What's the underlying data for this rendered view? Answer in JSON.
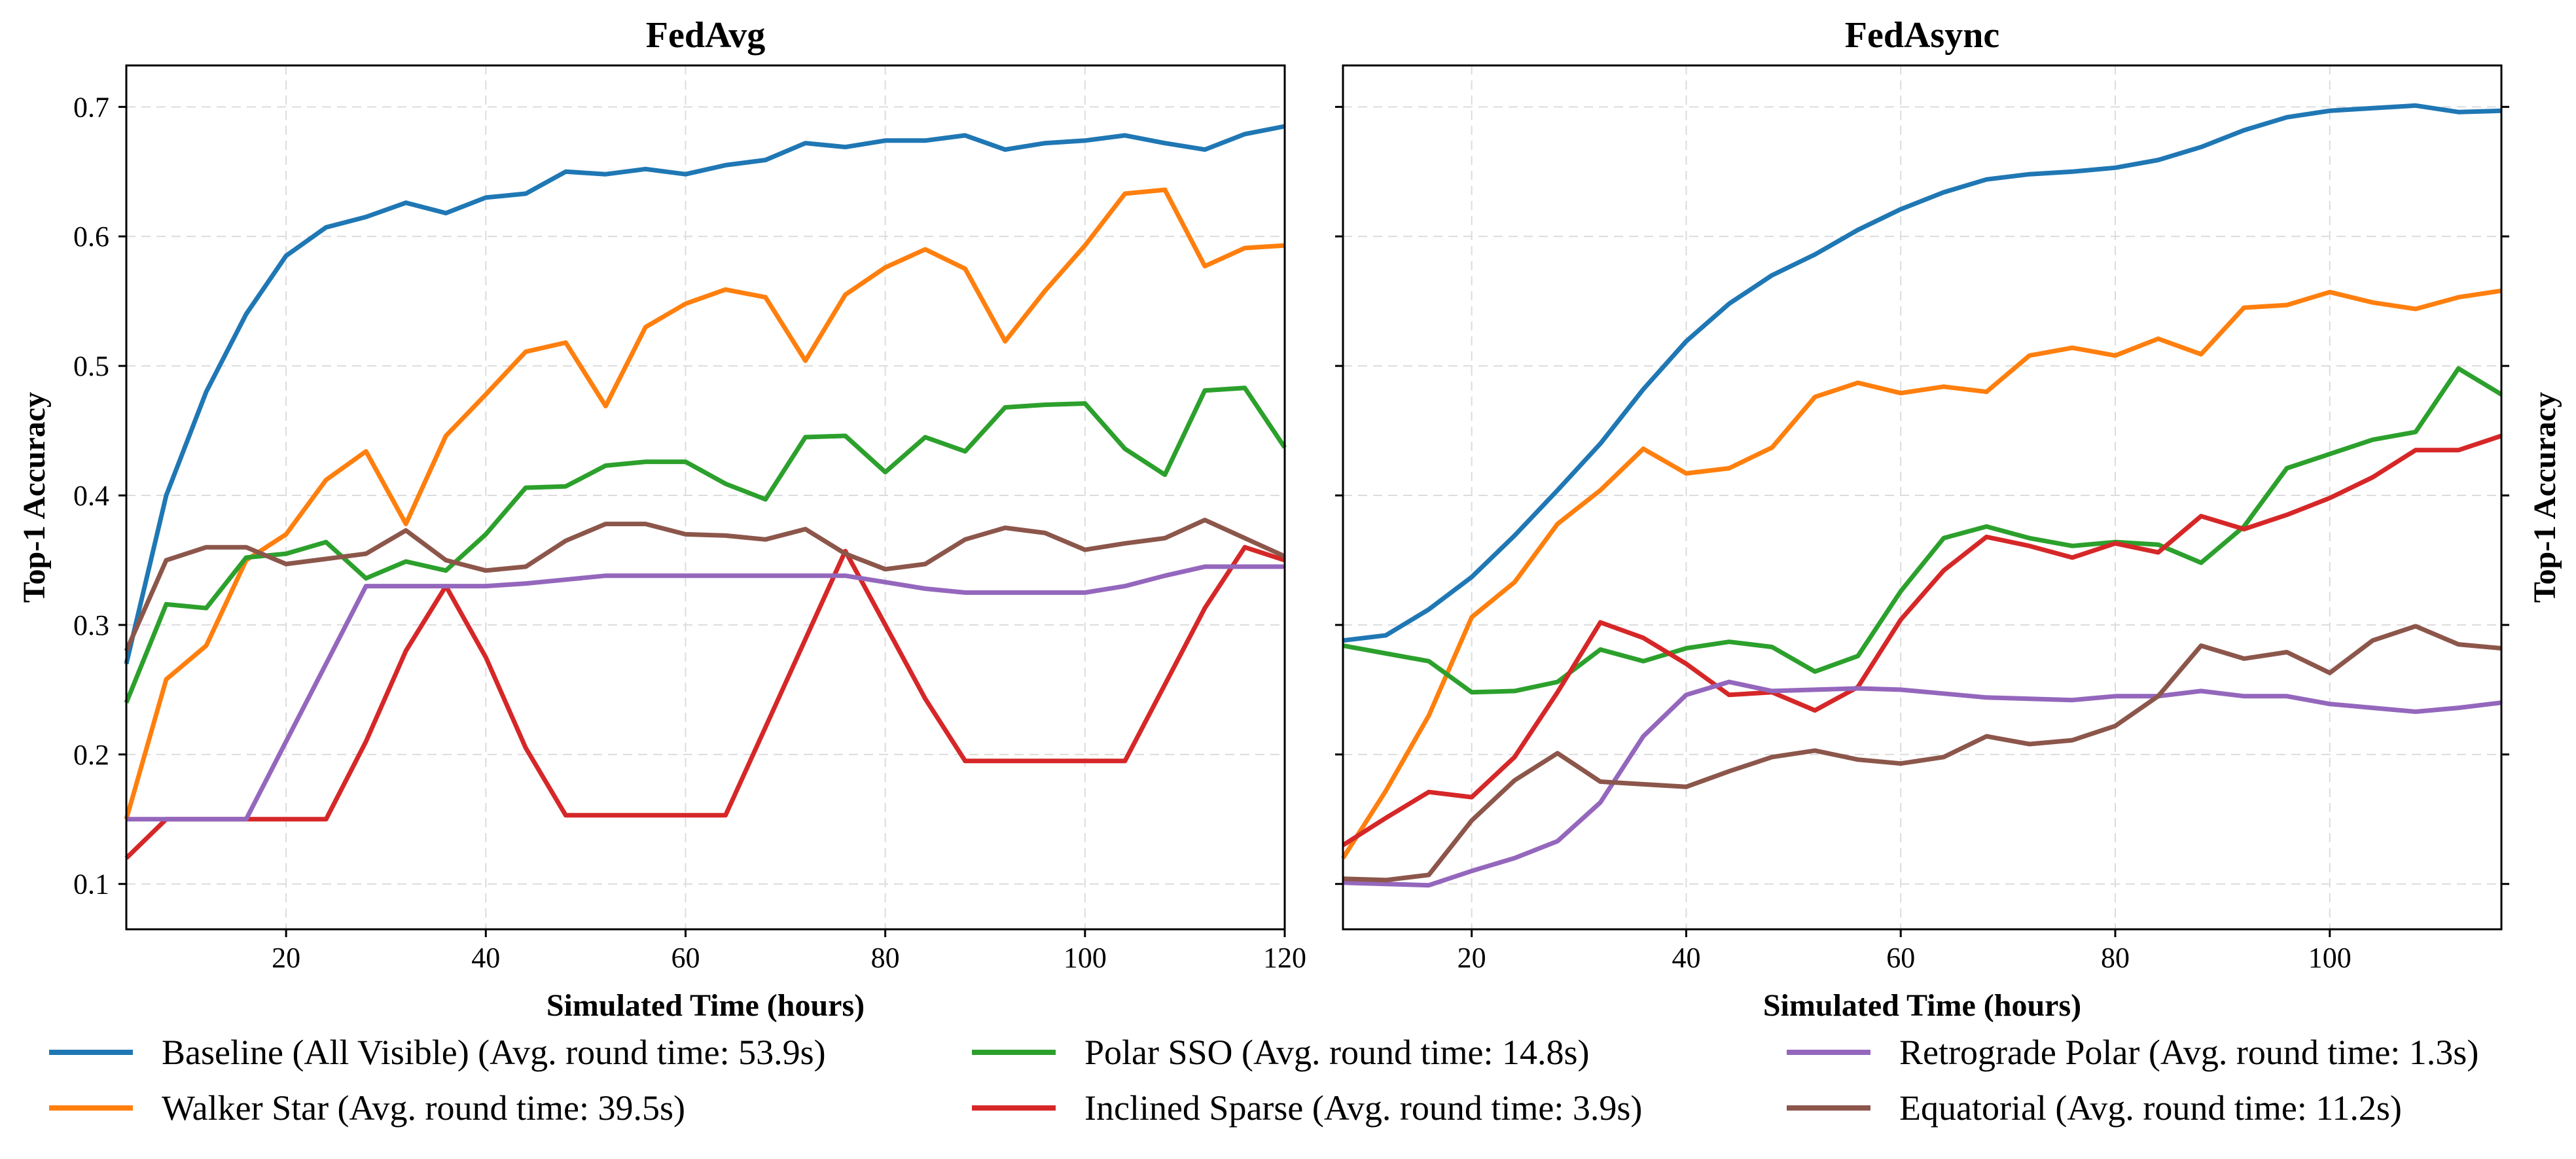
{
  "chart_data": [
    {
      "type": "line",
      "title": "FedAvg",
      "xlabel": "Simulated Time (hours)",
      "ylabel": "Top-1 Accuracy",
      "xlim": [
        4,
        120
      ],
      "ylim": [
        0.065,
        0.732
      ],
      "xticks": [
        20,
        40,
        60,
        80,
        100,
        120
      ],
      "yticks": [
        0.1,
        0.2,
        0.3,
        0.4,
        0.5,
        0.6,
        0.7
      ],
      "ytick_labels": [
        "0.1",
        "0.2",
        "0.3",
        "0.4",
        "0.5",
        "0.6",
        "0.7"
      ],
      "grid": true,
      "x": [
        4,
        8,
        12,
        16,
        20,
        24,
        28,
        32,
        36,
        40,
        44,
        48,
        52,
        56,
        60,
        64,
        68,
        72,
        76,
        80,
        84,
        88,
        92,
        96,
        100,
        104,
        108,
        112,
        116,
        120
      ],
      "series": [
        {
          "key": "baseline",
          "values": [
            0.27,
            0.4,
            0.48,
            0.54,
            0.585,
            0.607,
            0.615,
            0.626,
            0.618,
            0.63,
            0.633,
            0.65,
            0.648,
            0.652,
            0.648,
            0.655,
            0.659,
            0.672,
            0.669,
            0.674,
            0.674,
            0.678,
            0.667,
            0.672,
            0.674,
            0.678,
            0.672,
            0.667,
            0.679,
            0.685
          ]
        },
        {
          "key": "walker",
          "values": [
            0.15,
            0.258,
            0.284,
            0.35,
            0.37,
            0.412,
            0.434,
            0.378,
            0.446,
            0.478,
            0.511,
            0.518,
            0.469,
            0.53,
            0.548,
            0.559,
            0.553,
            0.504,
            0.555,
            0.576,
            0.59,
            0.575,
            0.519,
            0.558,
            0.593,
            0.633,
            0.636,
            0.577,
            0.591,
            0.593
          ]
        },
        {
          "key": "polar",
          "values": [
            0.24,
            0.316,
            0.313,
            0.352,
            0.355,
            0.364,
            0.336,
            0.349,
            0.342,
            0.37,
            0.406,
            0.407,
            0.423,
            0.426,
            0.426,
            0.409,
            0.397,
            0.445,
            0.446,
            0.418,
            0.445,
            0.434,
            0.468,
            0.47,
            0.471,
            0.436,
            0.416,
            0.481,
            0.483,
            0.437
          ]
        },
        {
          "key": "inclined",
          "values": [
            0.12,
            0.15,
            0.15,
            0.15,
            0.15,
            0.15,
            0.21,
            0.28,
            0.33,
            0.275,
            0.205,
            0.153,
            0.153,
            0.153,
            0.153,
            0.153,
            0.221,
            0.289,
            0.357,
            0.3,
            0.243,
            0.195,
            0.195,
            0.195,
            0.195,
            0.195,
            0.254,
            0.313,
            0.36,
            0.35
          ]
        },
        {
          "key": "retro",
          "values": [
            0.15,
            0.15,
            0.15,
            0.15,
            0.21,
            0.27,
            0.33,
            0.33,
            0.33,
            0.33,
            0.332,
            0.335,
            0.338,
            0.338,
            0.338,
            0.338,
            0.338,
            0.338,
            0.338,
            0.333,
            0.328,
            0.325,
            0.325,
            0.325,
            0.325,
            0.33,
            0.338,
            0.345,
            0.345,
            0.345
          ]
        },
        {
          "key": "equatorial",
          "values": [
            0.28,
            0.35,
            0.36,
            0.36,
            0.347,
            0.351,
            0.355,
            0.373,
            0.35,
            0.342,
            0.345,
            0.365,
            0.378,
            0.378,
            0.37,
            0.369,
            0.366,
            0.374,
            0.355,
            0.343,
            0.347,
            0.366,
            0.375,
            0.371,
            0.358,
            0.363,
            0.367,
            0.381,
            0.367,
            0.353
          ]
        }
      ]
    },
    {
      "type": "line",
      "title": "FedAsync",
      "xlabel": "Simulated Time (hours)",
      "ylabel": "Top-1 Accuracy",
      "xlim": [
        8,
        116
      ],
      "ylim": [
        0.065,
        0.732
      ],
      "xticks": [
        20,
        40,
        60,
        80,
        100
      ],
      "yticks": [
        0.1,
        0.2,
        0.3,
        0.4,
        0.5,
        0.6,
        0.7
      ],
      "grid": true,
      "x": [
        8,
        12,
        16,
        20,
        24,
        28,
        32,
        36,
        40,
        44,
        48,
        52,
        56,
        60,
        64,
        68,
        72,
        76,
        80,
        84,
        88,
        92,
        96,
        100,
        104,
        108,
        112,
        116
      ],
      "series": [
        {
          "key": "baseline",
          "values": [
            0.288,
            0.292,
            0.312,
            0.337,
            0.369,
            0.404,
            0.44,
            0.482,
            0.519,
            0.548,
            0.57,
            0.586,
            0.605,
            0.621,
            0.634,
            0.644,
            0.648,
            0.65,
            0.653,
            0.659,
            0.669,
            0.682,
            0.692,
            0.697,
            0.699,
            0.701,
            0.696,
            0.697
          ]
        },
        {
          "key": "walker",
          "values": [
            0.12,
            0.172,
            0.23,
            0.306,
            0.333,
            0.378,
            0.404,
            0.436,
            0.417,
            0.421,
            0.437,
            0.476,
            0.487,
            0.479,
            0.484,
            0.48,
            0.508,
            0.514,
            0.508,
            0.521,
            0.509,
            0.545,
            0.547,
            0.557,
            0.549,
            0.544,
            0.553,
            0.558
          ]
        },
        {
          "key": "polar",
          "values": [
            0.284,
            0.278,
            0.272,
            0.248,
            0.249,
            0.256,
            0.281,
            0.272,
            0.282,
            0.287,
            0.283,
            0.264,
            0.276,
            0.326,
            0.367,
            0.376,
            0.367,
            0.361,
            0.364,
            0.362,
            0.348,
            0.376,
            0.421,
            0.432,
            0.443,
            0.449,
            0.498,
            0.478
          ]
        },
        {
          "key": "inclined",
          "values": [
            0.13,
            0.151,
            0.171,
            0.167,
            0.198,
            0.248,
            0.302,
            0.29,
            0.27,
            0.246,
            0.248,
            0.234,
            0.252,
            0.304,
            0.342,
            0.368,
            0.361,
            0.352,
            0.363,
            0.356,
            0.384,
            0.374,
            0.385,
            0.398,
            0.414,
            0.435,
            0.435,
            0.446
          ]
        },
        {
          "key": "retro",
          "values": [
            0.101,
            0.1,
            0.099,
            0.11,
            0.12,
            0.133,
            0.163,
            0.214,
            0.246,
            0.256,
            0.249,
            0.25,
            0.251,
            0.25,
            0.247,
            0.244,
            0.243,
            0.242,
            0.245,
            0.245,
            0.249,
            0.245,
            0.245,
            0.239,
            0.236,
            0.233,
            0.236,
            0.24
          ]
        },
        {
          "key": "equatorial",
          "values": [
            0.104,
            0.103,
            0.107,
            0.149,
            0.18,
            0.201,
            0.179,
            0.177,
            0.175,
            0.187,
            0.198,
            0.203,
            0.196,
            0.193,
            0.198,
            0.214,
            0.208,
            0.211,
            0.222,
            0.245,
            0.284,
            0.274,
            0.279,
            0.263,
            0.288,
            0.299,
            0.285,
            0.282
          ]
        }
      ]
    }
  ],
  "legend": {
    "placement": "bottom",
    "items": [
      {
        "key": "baseline",
        "label": "Baseline (All Visible) (Avg. round time: 53.9s)",
        "color": "#1f77b4"
      },
      {
        "key": "walker",
        "label": "Walker Star (Avg. round time: 39.5s)",
        "color": "#ff7f0e"
      },
      {
        "key": "polar",
        "label": "Polar SSO (Avg. round time: 14.8s)",
        "color": "#2ca02c"
      },
      {
        "key": "inclined",
        "label": "Inclined Sparse (Avg. round time: 3.9s)",
        "color": "#d62728"
      },
      {
        "key": "retro",
        "label": "Retrograde Polar (Avg. round time: 1.3s)",
        "color": "#9467bd"
      },
      {
        "key": "equatorial",
        "label": "Equatorial (Avg. round time: 11.2s)",
        "color": "#8c564b"
      }
    ]
  }
}
